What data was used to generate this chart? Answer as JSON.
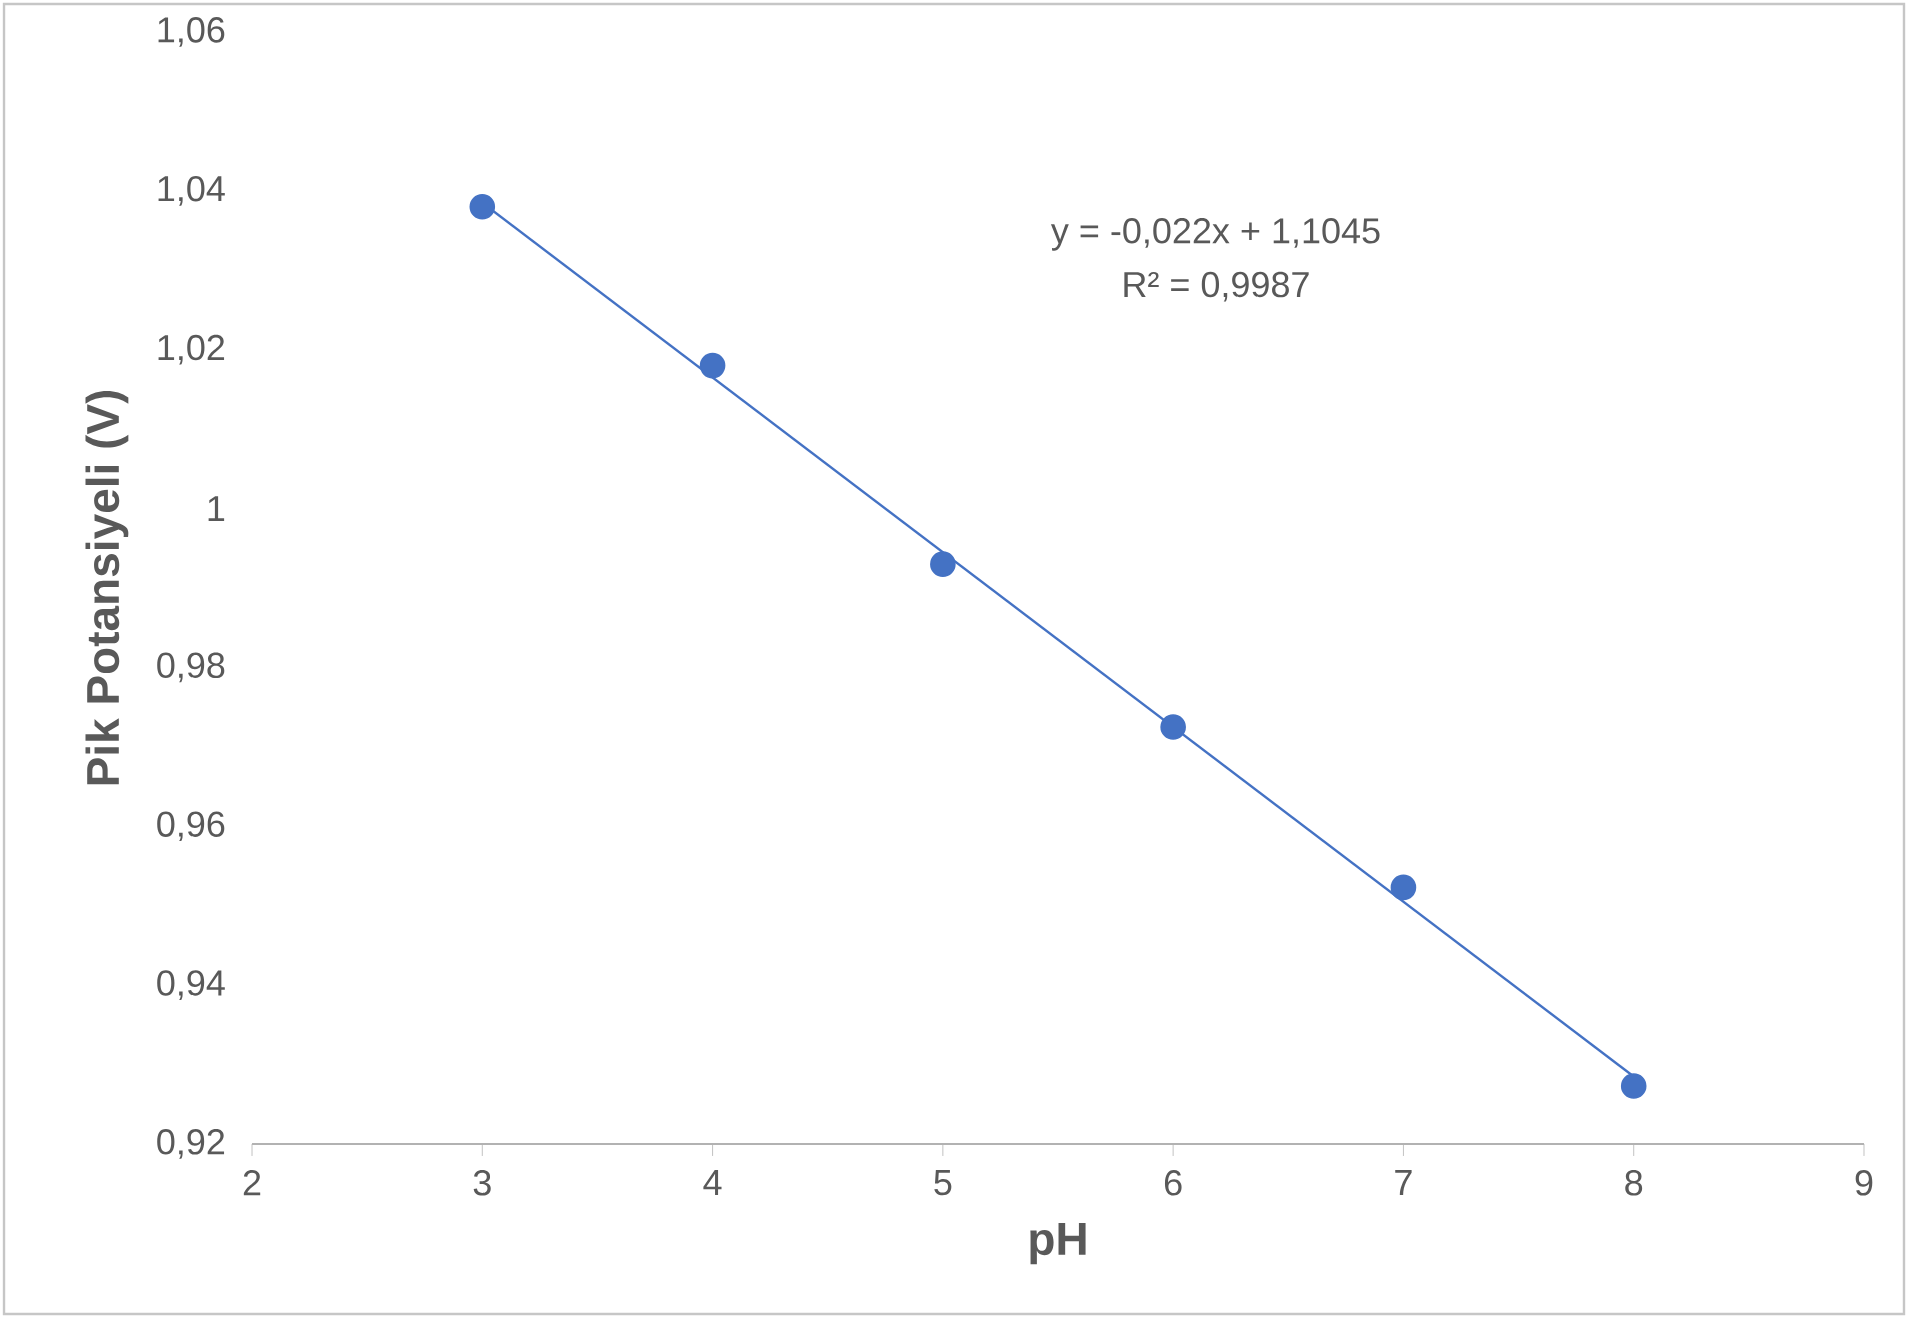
{
  "chart_data": {
    "type": "scatter",
    "xlabel": "pH",
    "ylabel": "Pik Potansiyeli (V)",
    "xlim": [
      2,
      9
    ],
    "ylim": [
      0.92,
      1.06
    ],
    "xticks": [
      2,
      3,
      4,
      5,
      6,
      7,
      8,
      9
    ],
    "yticks": [
      {
        "value": 0.92,
        "label": "0,92"
      },
      {
        "value": 0.94,
        "label": "0,94"
      },
      {
        "value": 0.96,
        "label": "0,96"
      },
      {
        "value": 0.98,
        "label": "0,98"
      },
      1,
      {
        "value": 1.02,
        "label": "1,02"
      },
      {
        "value": 1.04,
        "label": "1,04"
      },
      {
        "value": 1.06,
        "label": "1,06"
      }
    ],
    "marker": "circle",
    "series": [
      {
        "color": "#4472c4",
        "x": [
          3,
          4,
          5,
          6,
          7,
          8
        ],
        "values": [
          1.038,
          1.018,
          0.993,
          0.9725,
          0.9523,
          0.9273
        ]
      },
      {
        "type": "line",
        "marker": "none",
        "color": "#4472c4",
        "x": [
          3,
          8
        ],
        "values": [
          1.0385,
          0.9285
        ]
      }
    ],
    "annotations": [
      "y = -0,022x + 1,1045",
      "R² = 0,9987"
    ]
  }
}
